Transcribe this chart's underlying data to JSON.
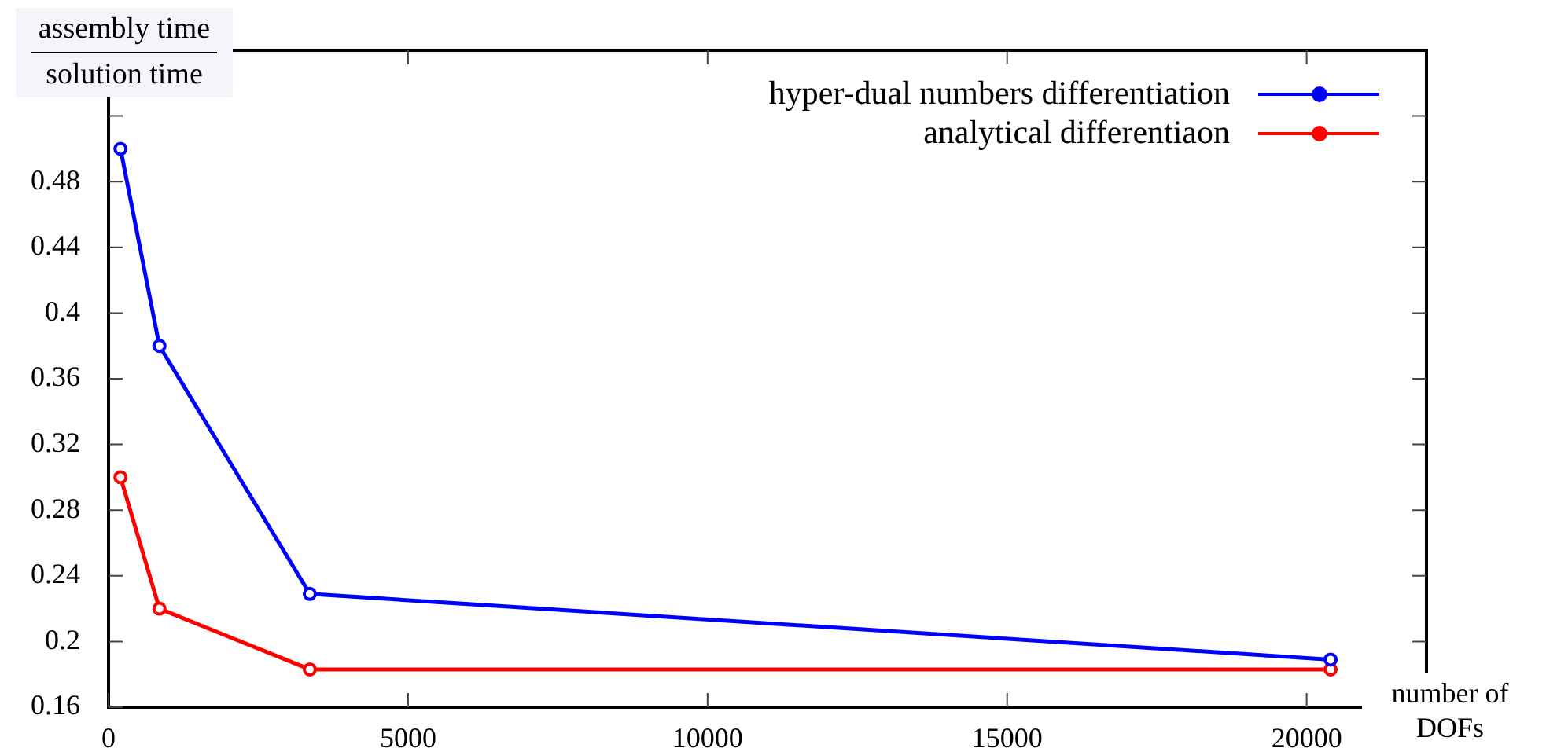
{
  "chart_data": {
    "type": "line",
    "xlabel": "number of DOFs",
    "ylabel": "assembly time\nsolution time",
    "xlim": [
      0,
      22000
    ],
    "xticks": [
      0,
      5000,
      10000,
      15000,
      20000
    ],
    "ylim": [
      0.16,
      0.56
    ],
    "yticks": [
      0.16,
      0.2,
      0.24,
      0.28,
      0.32,
      0.36,
      0.4,
      0.44,
      0.48,
      {
        "value": 0.52,
        "label": null
      }
    ],
    "grid": false,
    "legend": "top right",
    "marker": "circle",
    "line_style": "solid",
    "series": [
      {
        "name": "hyper-dual numbers differentiation",
        "color": "#0000ff",
        "x": [
          200,
          850,
          3360,
          20400
        ],
        "values": [
          0.5,
          0.38,
          0.229,
          0.189
        ]
      },
      {
        "name": "analytical differentiaon",
        "color": "#ff0000",
        "x": [
          200,
          850,
          3360,
          20400
        ],
        "values": [
          0.3,
          0.22,
          0.183,
          0.183
        ]
      }
    ]
  }
}
